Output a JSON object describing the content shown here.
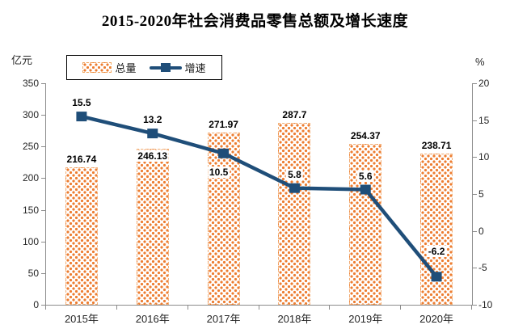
{
  "title": "2015-2020年社会消费品零售总额及增长速度",
  "legend": {
    "items": [
      {
        "label": "总量",
        "type": "bar"
      },
      {
        "label": "增速",
        "type": "line"
      }
    ]
  },
  "left_axis": {
    "unit": "亿元",
    "ticks": [
      350,
      300,
      250,
      200,
      150,
      100,
      50,
      0
    ]
  },
  "right_axis": {
    "unit": "%",
    "ticks": [
      20,
      15,
      10,
      5,
      0,
      -5,
      -10
    ]
  },
  "colors": {
    "bar": "#ED7D31",
    "line": "#1F4E79",
    "axis": "#8c8c8c"
  },
  "chart_data": {
    "type": "combo",
    "categories": [
      "2015年",
      "2016年",
      "2017年",
      "2018年",
      "2019年",
      "2020年"
    ],
    "series": [
      {
        "name": "总量",
        "type": "bar",
        "axis": "left",
        "unit": "亿元",
        "color": "#ED7D31",
        "values": [
          216.74,
          246.13,
          271.97,
          287.7,
          254.37,
          238.71
        ],
        "data_labels": [
          "216.74",
          "246.13",
          "271.97",
          "287.7",
          "254.37",
          "238.71"
        ],
        "label_pos": [
          "above",
          "inside",
          "above",
          "above",
          "above",
          "above"
        ]
      },
      {
        "name": "增速",
        "type": "line",
        "axis": "right",
        "unit": "%",
        "color": "#1F4E79",
        "values": [
          15.5,
          13.2,
          10.5,
          5.8,
          5.6,
          -6.2
        ],
        "data_labels": [
          "15.5",
          "13.2",
          "10.5",
          "5.8",
          "5.6",
          "-6.2"
        ],
        "label_pos": [
          "above",
          "above",
          "below",
          "above",
          "above",
          "above-far"
        ]
      }
    ],
    "left_axis_range": [
      0,
      350
    ],
    "right_axis_range": [
      -10,
      20
    ],
    "grid": false,
    "legend_position": "top-left"
  }
}
